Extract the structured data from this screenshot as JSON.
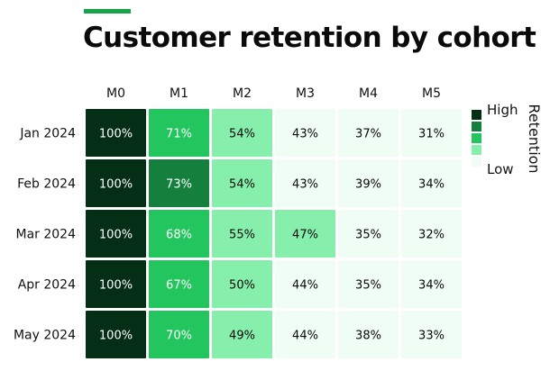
{
  "chart_data": {
    "type": "heatmap",
    "title": "Customer retention by cohort",
    "columns": [
      "M0",
      "M1",
      "M2",
      "M3",
      "M4",
      "M5"
    ],
    "rows": [
      "Jan 2024",
      "Feb 2024",
      "Mar 2024",
      "Apr 2024",
      "May 2024"
    ],
    "values": [
      [
        100,
        71,
        54,
        43,
        37,
        31
      ],
      [
        100,
        73,
        54,
        43,
        39,
        34
      ],
      [
        100,
        68,
        55,
        47,
        35,
        32
      ],
      [
        100,
        67,
        50,
        44,
        35,
        34
      ],
      [
        100,
        70,
        49,
        44,
        38,
        33
      ]
    ],
    "value_labels": [
      [
        "100%",
        "71%",
        "54%",
        "43%",
        "37%",
        "31%"
      ],
      [
        "100%",
        "73%",
        "54%",
        "43%",
        "39%",
        "34%"
      ],
      [
        "100%",
        "68%",
        "55%",
        "47%",
        "35%",
        "32%"
      ],
      [
        "100%",
        "67%",
        "50%",
        "44%",
        "35%",
        "34%"
      ],
      [
        "100%",
        "70%",
        "49%",
        "44%",
        "38%",
        "33%"
      ]
    ],
    "legend": {
      "title": "Retention",
      "high_label": "High",
      "low_label": "Low",
      "placement": "right",
      "colors": [
        "#052e16",
        "#15803d",
        "#22c55e",
        "#86efac",
        "#f0fdf4"
      ]
    },
    "color_bins": [
      {
        "min": 90,
        "color": "#052e16",
        "text": "#ffffff"
      },
      {
        "min": 72,
        "color": "#15803d",
        "text": "#ffffff"
      },
      {
        "min": 60,
        "color": "#22c55e",
        "text": "#ffffff"
      },
      {
        "min": 45,
        "color": "#86efac",
        "text": "#0a0a0a"
      },
      {
        "min": 0,
        "color": "#f0fdf4",
        "text": "#0a0a0a"
      }
    ],
    "accent_color": "#16a34a"
  }
}
